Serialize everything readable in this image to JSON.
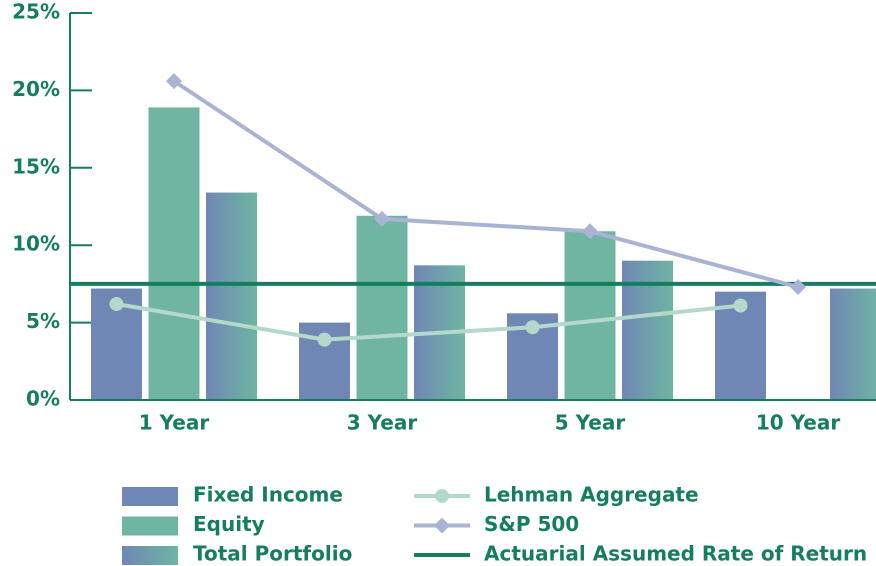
{
  "chart_data": {
    "type": "bar",
    "categories": [
      "1 Year",
      "3 Year",
      "5 Year",
      "10 Year"
    ],
    "series": [
      {
        "name": "Fixed Income",
        "type": "bar",
        "color": "#6f87b5",
        "values": [
          7.2,
          5.0,
          5.6,
          7.0
        ]
      },
      {
        "name": "Equity",
        "type": "bar",
        "color": "#6fb5a2",
        "values": [
          18.9,
          11.9,
          10.9,
          null
        ]
      },
      {
        "name": "Total Portfolio",
        "type": "bar",
        "color": [
          "#6f87b5",
          "#6fb5a2"
        ],
        "values": [
          13.4,
          8.7,
          9.0,
          7.2
        ]
      },
      {
        "name": "Lehman Aggregate",
        "type": "line",
        "marker": "circle",
        "color": "#b5d8cc",
        "values": [
          6.2,
          3.9,
          4.7,
          6.1
        ]
      },
      {
        "name": "S&P 500",
        "type": "line",
        "marker": "diamond",
        "color": "#a9b4d4",
        "values": [
          20.6,
          11.7,
          10.9,
          7.3
        ]
      }
    ],
    "reference_lines": [
      {
        "name": "Actuarial Assumed Rate of Return",
        "value": 7.5,
        "color": "#157d60"
      }
    ],
    "ylim": [
      0,
      25
    ],
    "yticks": [
      {
        "value": 0,
        "label": "0%"
      },
      {
        "value": 5,
        "label": "5%"
      },
      {
        "value": 10,
        "label": "10%"
      },
      {
        "value": 15,
        "label": "15%"
      },
      {
        "value": 20,
        "label": "20%"
      },
      {
        "value": 25,
        "label": "25%"
      }
    ],
    "grid": false
  }
}
